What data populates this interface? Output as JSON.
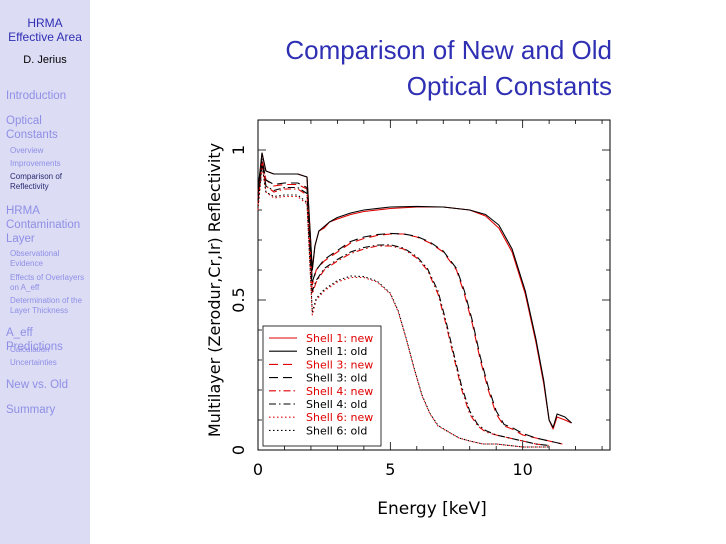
{
  "sidebar": {
    "title_line1": "HRMA",
    "title_line2": "Effective Area",
    "author": "D. Jerius",
    "sections": [
      {
        "label": "Introduction"
      },
      {
        "label": "Optical Constants",
        "items": [
          "Overview",
          "Improvements",
          "Comparison of Reflectivity"
        ]
      },
      {
        "label": "HRMA Contamination Layer",
        "items": [
          "Observational Evidence",
          "Effects of Overlayers on A_eff",
          "Determination of the Layer Thickness"
        ]
      },
      {
        "label": "A_eff Predictions",
        "items": [
          "Calculation",
          "Uncertainties"
        ]
      },
      {
        "label": "New vs. Old"
      },
      {
        "label": "Summary"
      }
    ]
  },
  "slide": {
    "title_line1": "Comparison of New and Old",
    "title_line2": "Optical Constants"
  },
  "chart_data": {
    "type": "line",
    "title": "",
    "xlabel": "Energy [keV]",
    "ylabel": "Multilayer (Zerodur,Cr,Ir) Reflectivity",
    "xlim": [
      0,
      13.3
    ],
    "ylim": [
      0,
      1.1
    ],
    "x_ticks": [
      0,
      5,
      10
    ],
    "y_ticks": [
      0,
      0.5,
      1
    ],
    "legend_position": "bottom-left",
    "series": [
      {
        "name": "Shell 1: new",
        "color": "#e00000",
        "dash": "solid",
        "x": [
          0.0,
          0.15,
          0.3,
          0.6,
          1.0,
          1.5,
          1.85,
          2.05,
          2.15,
          2.3,
          2.5,
          2.7,
          3.0,
          3.5,
          4.0,
          5.0,
          6.0,
          7.0,
          8.0,
          8.6,
          9.1,
          9.6,
          10.1,
          10.5,
          10.8,
          11.0,
          11.15,
          11.3,
          11.6,
          11.85
        ],
        "y": [
          0.86,
          0.99,
          0.93,
          0.92,
          0.92,
          0.92,
          0.91,
          0.6,
          0.68,
          0.73,
          0.74,
          0.76,
          0.77,
          0.785,
          0.795,
          0.805,
          0.81,
          0.81,
          0.8,
          0.78,
          0.74,
          0.66,
          0.52,
          0.36,
          0.22,
          0.1,
          0.07,
          0.11,
          0.1,
          0.09
        ]
      },
      {
        "name": "Shell 1: old",
        "color": "#000000",
        "dash": "solid",
        "x": [
          0.0,
          0.15,
          0.3,
          0.6,
          1.0,
          1.5,
          1.85,
          2.05,
          2.15,
          2.3,
          2.5,
          2.7,
          3.0,
          3.5,
          4.0,
          5.0,
          6.0,
          7.0,
          8.0,
          8.6,
          9.1,
          9.6,
          10.1,
          10.5,
          10.8,
          11.0,
          11.15,
          11.3,
          11.6,
          11.85
        ],
        "y": [
          0.87,
          0.99,
          0.93,
          0.92,
          0.92,
          0.92,
          0.91,
          0.6,
          0.68,
          0.73,
          0.745,
          0.76,
          0.775,
          0.79,
          0.8,
          0.81,
          0.812,
          0.81,
          0.8,
          0.785,
          0.75,
          0.67,
          0.53,
          0.37,
          0.23,
          0.1,
          0.075,
          0.12,
          0.11,
          0.09
        ]
      },
      {
        "name": "Shell 3: new",
        "color": "#e00000",
        "dash": "long-dash",
        "x": [
          0.0,
          0.15,
          0.3,
          0.6,
          1.0,
          1.5,
          1.85,
          2.05,
          2.2,
          2.5,
          3.0,
          3.5,
          4.0,
          4.5,
          5.0,
          5.5,
          6.0,
          6.5,
          7.0,
          7.5,
          7.8,
          8.1,
          8.4,
          8.7,
          9.0,
          9.3,
          9.6,
          10.0,
          10.5,
          11.0,
          11.5
        ],
        "y": [
          0.84,
          0.97,
          0.9,
          0.88,
          0.885,
          0.885,
          0.87,
          0.55,
          0.6,
          0.63,
          0.66,
          0.69,
          0.705,
          0.715,
          0.72,
          0.72,
          0.71,
          0.69,
          0.66,
          0.6,
          0.52,
          0.42,
          0.3,
          0.2,
          0.12,
          0.08,
          0.07,
          0.05,
          0.04,
          0.03,
          0.02
        ]
      },
      {
        "name": "Shell 3: old",
        "color": "#000000",
        "dash": "long-dash",
        "x": [
          0.0,
          0.15,
          0.3,
          0.6,
          1.0,
          1.5,
          1.85,
          2.05,
          2.2,
          2.5,
          3.0,
          3.5,
          4.0,
          4.5,
          5.0,
          5.5,
          6.0,
          6.5,
          7.0,
          7.5,
          7.8,
          8.1,
          8.4,
          8.7,
          9.0,
          9.3,
          9.6,
          10.0,
          10.5,
          11.0,
          11.5
        ],
        "y": [
          0.85,
          0.97,
          0.9,
          0.885,
          0.89,
          0.89,
          0.875,
          0.56,
          0.6,
          0.635,
          0.665,
          0.695,
          0.71,
          0.718,
          0.722,
          0.72,
          0.712,
          0.693,
          0.663,
          0.605,
          0.53,
          0.43,
          0.31,
          0.21,
          0.13,
          0.085,
          0.075,
          0.055,
          0.04,
          0.03,
          0.02
        ]
      },
      {
        "name": "Shell 4: new",
        "color": "#e00000",
        "dash": "dash-dot",
        "x": [
          0.0,
          0.15,
          0.3,
          0.6,
          1.0,
          1.5,
          1.85,
          2.05,
          2.2,
          2.5,
          3.0,
          3.5,
          4.0,
          4.5,
          5.0,
          5.5,
          6.0,
          6.4,
          6.8,
          7.1,
          7.4,
          7.7,
          8.0,
          8.3,
          8.6,
          9.0,
          9.5,
          10.0,
          10.5,
          11.0
        ],
        "y": [
          0.82,
          0.96,
          0.88,
          0.86,
          0.87,
          0.87,
          0.85,
          0.52,
          0.56,
          0.6,
          0.63,
          0.655,
          0.67,
          0.68,
          0.68,
          0.67,
          0.64,
          0.6,
          0.52,
          0.42,
          0.31,
          0.2,
          0.12,
          0.08,
          0.06,
          0.05,
          0.04,
          0.03,
          0.02,
          0.015
        ]
      },
      {
        "name": "Shell 4: old",
        "color": "#000000",
        "dash": "dash-dot",
        "x": [
          0.0,
          0.15,
          0.3,
          0.6,
          1.0,
          1.5,
          1.85,
          2.05,
          2.2,
          2.5,
          3.0,
          3.5,
          4.0,
          4.5,
          5.0,
          5.5,
          6.0,
          6.4,
          6.8,
          7.1,
          7.4,
          7.7,
          8.0,
          8.3,
          8.6,
          9.0,
          9.5,
          10.0,
          10.5,
          11.0
        ],
        "y": [
          0.83,
          0.96,
          0.88,
          0.865,
          0.875,
          0.875,
          0.855,
          0.53,
          0.565,
          0.605,
          0.635,
          0.66,
          0.675,
          0.683,
          0.684,
          0.673,
          0.645,
          0.605,
          0.53,
          0.43,
          0.32,
          0.21,
          0.13,
          0.085,
          0.065,
          0.05,
          0.04,
          0.03,
          0.02,
          0.015
        ]
      },
      {
        "name": "Shell 6: new",
        "color": "#e00000",
        "dash": "dotted",
        "x": [
          0.0,
          0.15,
          0.3,
          0.6,
          1.0,
          1.5,
          1.85,
          2.05,
          2.2,
          2.5,
          3.0,
          3.5,
          4.0,
          4.5,
          5.0,
          5.3,
          5.6,
          5.9,
          6.2,
          6.5,
          6.8,
          7.2,
          7.6,
          8.0,
          8.5,
          9.0,
          10.0,
          11.0
        ],
        "y": [
          0.8,
          0.95,
          0.86,
          0.84,
          0.845,
          0.845,
          0.82,
          0.45,
          0.5,
          0.53,
          0.56,
          0.575,
          0.575,
          0.56,
          0.52,
          0.46,
          0.37,
          0.27,
          0.18,
          0.12,
          0.08,
          0.06,
          0.04,
          0.03,
          0.02,
          0.02,
          0.01,
          0.01
        ]
      },
      {
        "name": "Shell 6: old",
        "color": "#000000",
        "dash": "dotted",
        "x": [
          0.0,
          0.15,
          0.3,
          0.6,
          1.0,
          1.5,
          1.85,
          2.05,
          2.2,
          2.5,
          3.0,
          3.5,
          4.0,
          4.5,
          5.0,
          5.3,
          5.6,
          5.9,
          6.2,
          6.5,
          6.8,
          7.2,
          7.6,
          8.0,
          8.5,
          9.0,
          10.0,
          11.0
        ],
        "y": [
          0.81,
          0.95,
          0.86,
          0.845,
          0.85,
          0.85,
          0.825,
          0.46,
          0.505,
          0.535,
          0.565,
          0.58,
          0.578,
          0.563,
          0.523,
          0.463,
          0.372,
          0.272,
          0.182,
          0.122,
          0.082,
          0.06,
          0.04,
          0.03,
          0.02,
          0.02,
          0.01,
          0.01
        ]
      }
    ]
  }
}
